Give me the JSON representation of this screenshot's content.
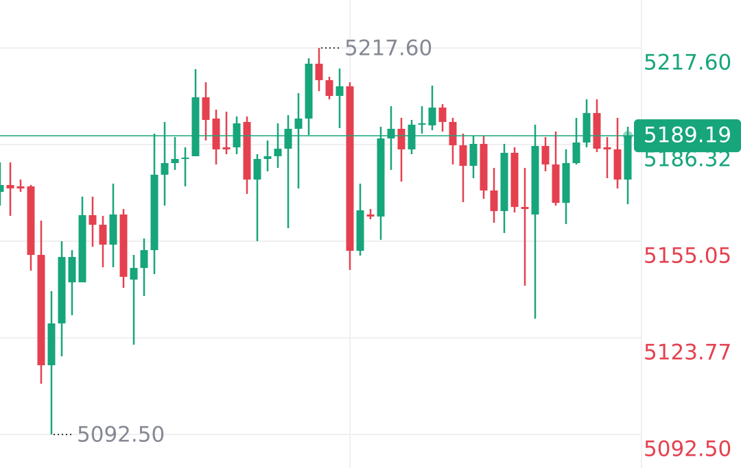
{
  "chart_data": {
    "type": "candlestick",
    "open": [
      5171.02,
      5173.24,
      5172.8,
      5172.8,
      5150.62,
      5114.91,
      5128.44,
      5141.74,
      5141.74,
      5163.48,
      5160.38,
      5153.94,
      5163.7,
      5142.63,
      5146.4,
      5152.17,
      5176.57,
      5180.34,
      5181.67,
      5182.56,
      5201.63,
      5194.75,
      5185.44,
      5185.44,
      5193.65,
      5175.01,
      5181.67,
      5182.56,
      5185.0,
      5191.43,
      5194.75,
      5212.5,
      5207.18,
      5202.07,
      5205.18,
      5151.95,
      5163.7,
      5163.04,
      5188.32,
      5191.43,
      5184.77,
      5192.76,
      5192.54,
      5198.3,
      5193.65,
      5186.1,
      5179.45,
      5186.55,
      5171.47,
      5164.81,
      5183.66,
      5166.14,
      5163.7,
      5185.88,
      5179.89,
      5167.47,
      5180.34,
      5186.99,
      5196.53,
      5185.44,
      5184.77,
      5175.01
    ],
    "high": [
      5180.56,
      5180.56,
      5175.01,
      5173.24,
      5161.71,
      5138.86,
      5155.05,
      5152.17,
      5169.47,
      5169.47,
      5163.26,
      5173.68,
      5165.48,
      5150.62,
      5155.94,
      5189.88,
      5193.65,
      5188.77,
      5185.44,
      5210.72,
      5206.51,
      5197.64,
      5196.97,
      5195.42,
      5195.42,
      5183.22,
      5187.66,
      5193.2,
      5195.86,
      5202.96,
      5214.27,
      5217.6,
      5208.28,
      5210.95,
      5206.51,
      5173.68,
      5165.48,
      5192.09,
      5198.75,
      5194.98,
      5194.31,
      5198.75,
      5205.4,
      5199.41,
      5194.98,
      5189.88,
      5189.21,
      5189.21,
      5178.79,
      5186.55,
      5185.44,
      5178.79,
      5192.76,
      5188.77,
      5190.54,
      5184.77,
      5194.98,
      5200.97,
      5200.97,
      5188.77,
      5194.98,
      5192.09
    ],
    "low": [
      5166.59,
      5163.26,
      5171.02,
      5145.52,
      5108.92,
      5092.5,
      5117.79,
      5131.1,
      5141.74,
      5153.28,
      5146.62,
      5146.62,
      5139.97,
      5121.56,
      5137.31,
      5144.41,
      5166.59,
      5178.12,
      5172.8,
      5182.56,
      5187.66,
      5179.89,
      5183.22,
      5183.22,
      5170.36,
      5155.05,
      5177.68,
      5178.79,
      5159.27,
      5172.13,
      5189.43,
      5203.63,
      5200.97,
      5191.65,
      5145.74,
      5150.39,
      5162.15,
      5155.5,
      5178.12,
      5174.35,
      5183.22,
      5189.88,
      5190.98,
      5190.54,
      5179.89,
      5167.7,
      5175.46,
      5168.8,
      5161.04,
      5157.71,
      5164.37,
      5140.64,
      5129.99,
      5177.68,
      5166.59,
      5160.6,
      5179.89,
      5185.44,
      5183.89,
      5175.46,
      5172.13,
      5167.03
    ],
    "close": [
      5173.24,
      5172.13,
      5172.13,
      5150.62,
      5114.91,
      5128.44,
      5149.95,
      5149.95,
      5163.48,
      5160.38,
      5153.94,
      5163.7,
      5143.52,
      5146.4,
      5152.17,
      5176.57,
      5180.34,
      5181.67,
      5182.11,
      5201.63,
      5194.31,
      5184.77,
      5184.77,
      5193.2,
      5175.01,
      5181.67,
      5182.56,
      5185.0,
      5191.43,
      5194.75,
      5212.5,
      5207.18,
      5202.07,
      5205.18,
      5151.95,
      5165.04,
      5163.04,
      5188.32,
      5191.43,
      5184.77,
      5192.76,
      5193.2,
      5198.3,
      5193.65,
      5186.1,
      5179.45,
      5186.55,
      5171.47,
      5164.81,
      5183.66,
      5166.14,
      5165.48,
      5185.88,
      5179.89,
      5167.47,
      5180.34,
      5186.99,
      5196.53,
      5185.0,
      5184.77,
      5175.01,
      5189.19
    ],
    "up_color": "#17a57b",
    "down_color": "#e5404f",
    "ylim": [
      5081.65,
      5233.12
    ],
    "yticks": [
      {
        "value": 5217.6,
        "label": "5217.60"
      },
      5186.32,
      5155.05,
      5123.77,
      {
        "value": 5092.5,
        "label": "5092.50"
      }
    ],
    "ytick_colors": [
      "#17a57b",
      "#17a57b",
      "#e5404f",
      "#e5404f",
      "#e5404f"
    ],
    "grid": true,
    "high_label": {
      "value": 5217.6,
      "label": "5217.60"
    },
    "low_label": {
      "value": 5092.5,
      "label": "5092.50"
    }
  }
}
